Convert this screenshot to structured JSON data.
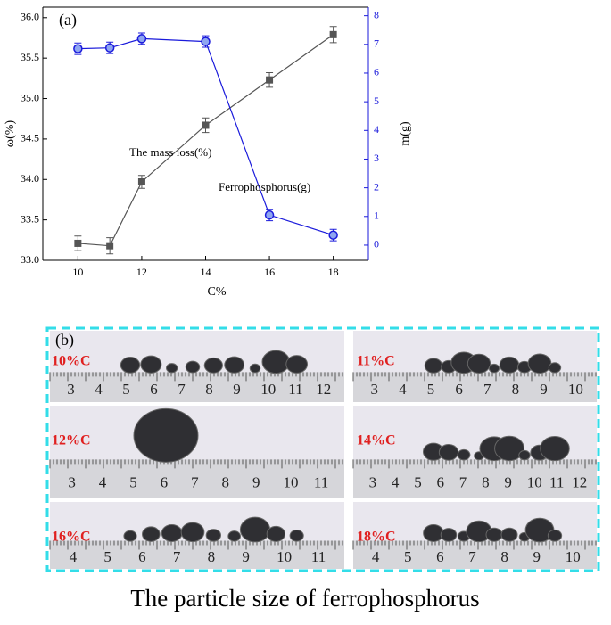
{
  "chart_data": {
    "type": "line",
    "panel_label": "(a)",
    "x": [
      10,
      11,
      12,
      14,
      16,
      18
    ],
    "xlim": [
      8.9,
      19.1
    ],
    "xticks": [
      10,
      12,
      14,
      16,
      18
    ],
    "ylim": [
      33.0,
      36.13
    ],
    "yticks": [
      {
        "value": 33.0,
        "label": "33.0"
      },
      {
        "value": 33.5,
        "label": "33.5"
      },
      {
        "value": 34.0,
        "label": "34.0"
      },
      {
        "value": 34.5,
        "label": "34.5"
      },
      {
        "value": 35.0,
        "label": "35.0"
      },
      {
        "value": 35.5,
        "label": "35.5"
      },
      {
        "value": 36.0,
        "label": "36.0"
      }
    ],
    "y2lim": [
      -0.53,
      8.3
    ],
    "y2ticks": [
      0,
      1,
      2,
      3,
      4,
      5,
      6,
      7,
      8
    ],
    "xlabel": "C%",
    "ylabel": "ω(%)",
    "y2label": "m(g)",
    "series": [
      {
        "name": "The mass loss(%)",
        "color": "#555555",
        "values": [
          33.21,
          33.18,
          33.97,
          34.67,
          35.23,
          35.79
        ],
        "errors": [
          0.09,
          0.1,
          0.08,
          0.09,
          0.09,
          0.1
        ]
      },
      {
        "name": "Ferrophosphorus(g)",
        "color": "#1a1adb",
        "axis": "y2",
        "values": [
          6.85,
          6.88,
          7.2,
          7.1,
          1.05,
          0.35
        ],
        "errors": [
          0.2,
          0.2,
          0.2,
          0.2,
          0.2,
          0.2
        ]
      }
    ]
  },
  "photo_panel": {
    "label": "(b)",
    "samples": [
      {
        "label": "10%C",
        "ruler": [
          3,
          4,
          5,
          6,
          7,
          8,
          9,
          10,
          11,
          12
        ]
      },
      {
        "label": "11%C",
        "ruler": [
          3,
          4,
          5,
          6,
          7,
          8,
          9,
          10
        ]
      },
      {
        "label": "12%C",
        "ruler": [
          3,
          4,
          5,
          6,
          7,
          8,
          9,
          10,
          11
        ]
      },
      {
        "label": "14%C",
        "ruler": [
          3,
          4,
          5,
          6,
          7,
          8,
          9,
          10,
          11,
          12
        ]
      },
      {
        "label": "16%C",
        "ruler": [
          4,
          5,
          6,
          7,
          8,
          9,
          10,
          11
        ]
      },
      {
        "label": "18%C",
        "ruler": [
          4,
          5,
          6,
          7,
          8,
          9,
          10
        ]
      }
    ]
  },
  "caption": "The particle size of ferrophosphorus"
}
